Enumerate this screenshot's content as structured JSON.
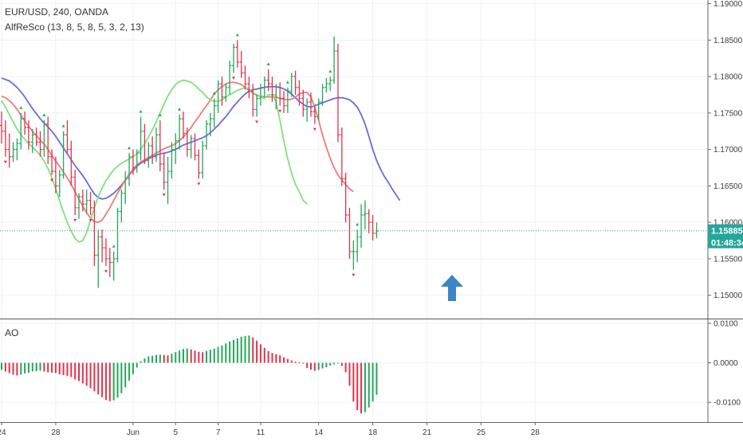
{
  "header": {
    "symbol": "EUR/USD, 240, OANDA",
    "indicator": "AlfReSco (13, 8, 5, 8, 5, 3, 2, 13)",
    "oscillator": "AO"
  },
  "price_tag": {
    "value": "1.15885",
    "countdown": "01:48:34",
    "color": "#26a69a"
  },
  "colors": {
    "up": "#26a65b",
    "down": "#e0344b",
    "jaw": "#6b6be0",
    "teeth": "#ef7a7a",
    "lips": "#7de37d",
    "arrow": "#3d85c6",
    "grid": "#eef1f5",
    "current_line": "#26a69a"
  },
  "arrow_icon": "up-arrow-icon",
  "chart_data": [
    {
      "type": "ohlc",
      "name": "EUR/USD",
      "ylim": [
        1.1468,
        1.1905
      ],
      "y_ticks": [
        "1.19000",
        "1.18500",
        "1.18000",
        "1.17500",
        "1.17000",
        "1.16500",
        "1.16000",
        "1.15500",
        "1.15000"
      ],
      "y_tick_values": [
        1.19,
        1.185,
        1.18,
        1.175,
        1.17,
        1.165,
        1.16,
        1.155,
        1.15
      ],
      "x_tick_labels": [
        "24",
        "28",
        "Jun",
        "5",
        "7",
        "11",
        "14",
        "18",
        "21",
        "25",
        "28"
      ],
      "x_tick_index": [
        0,
        14,
        34,
        45,
        56,
        67,
        82,
        96,
        110,
        124,
        138
      ],
      "current_price": 1.15885,
      "bars": [
        [
          1.1733,
          1.1752,
          1.1708,
          1.1725
        ],
        [
          1.1725,
          1.174,
          1.169,
          1.17
        ],
        [
          1.17,
          1.1722,
          1.1675,
          1.169
        ],
        [
          1.169,
          1.171,
          1.1683,
          1.17
        ],
        [
          1.17,
          1.1715,
          1.1685,
          1.1708
        ],
        [
          1.1708,
          1.175,
          1.17,
          1.1742
        ],
        [
          1.1742,
          1.1752,
          1.172,
          1.173
        ],
        [
          1.173,
          1.174,
          1.17,
          1.171
        ],
        [
          1.171,
          1.1728,
          1.1695,
          1.172
        ],
        [
          1.172,
          1.173,
          1.1705,
          1.171
        ],
        [
          1.171,
          1.1725,
          1.169,
          1.17
        ],
        [
          1.17,
          1.174,
          1.169,
          1.1735
        ],
        [
          1.1735,
          1.1745,
          1.168,
          1.169
        ],
        [
          1.169,
          1.17,
          1.1665,
          1.167
        ],
        [
          1.167,
          1.169,
          1.164,
          1.165
        ],
        [
          1.165,
          1.1672,
          1.1635,
          1.1665
        ],
        [
          1.1665,
          1.1725,
          1.166,
          1.172
        ],
        [
          1.172,
          1.174,
          1.1695,
          1.17
        ],
        [
          1.17,
          1.1712,
          1.165,
          1.1662
        ],
        [
          1.1662,
          1.1672,
          1.161,
          1.162
        ],
        [
          1.162,
          1.164,
          1.1605,
          1.1635
        ],
        [
          1.1635,
          1.1645,
          1.1615,
          1.1625
        ],
        [
          1.1625,
          1.1645,
          1.1612,
          1.163
        ],
        [
          1.163,
          1.1642,
          1.161,
          1.162
        ],
        [
          1.162,
          1.163,
          1.154,
          1.1555
        ],
        [
          1.1555,
          1.159,
          1.151,
          1.158
        ],
        [
          1.158,
          1.159,
          1.1545,
          1.1565
        ],
        [
          1.1565,
          1.1578,
          1.154,
          1.155
        ],
        [
          1.155,
          1.1565,
          1.1525,
          1.1545
        ],
        [
          1.1545,
          1.156,
          1.152,
          1.155
        ],
        [
          1.155,
          1.162,
          1.1545,
          1.1615
        ],
        [
          1.1615,
          1.1645,
          1.16,
          1.164
        ],
        [
          1.164,
          1.167,
          1.1625,
          1.166
        ],
        [
          1.166,
          1.1695,
          1.165,
          1.169
        ],
        [
          1.169,
          1.17,
          1.1665,
          1.1675
        ],
        [
          1.1675,
          1.17,
          1.1668,
          1.1695
        ],
        [
          1.1695,
          1.1745,
          1.1685,
          1.1725
        ],
        [
          1.1725,
          1.1735,
          1.168,
          1.1685
        ],
        [
          1.1685,
          1.171,
          1.1675,
          1.1705
        ],
        [
          1.1705,
          1.1718,
          1.168,
          1.169
        ],
        [
          1.169,
          1.173,
          1.1683,
          1.172
        ],
        [
          1.172,
          1.174,
          1.167,
          1.168
        ],
        [
          1.168,
          1.1695,
          1.1645,
          1.1655
        ],
        [
          1.1655,
          1.169,
          1.1625,
          1.167
        ],
        [
          1.167,
          1.171,
          1.166,
          1.17
        ],
        [
          1.17,
          1.1722,
          1.168,
          1.1712
        ],
        [
          1.1712,
          1.1748,
          1.17,
          1.1742
        ],
        [
          1.1742,
          1.1752,
          1.1715,
          1.1722
        ],
        [
          1.1722,
          1.173,
          1.169,
          1.17
        ],
        [
          1.17,
          1.172,
          1.1688,
          1.1715
        ],
        [
          1.1715,
          1.1722,
          1.1685,
          1.1692
        ],
        [
          1.1692,
          1.17,
          1.166,
          1.1668
        ],
        [
          1.1668,
          1.1712,
          1.166,
          1.1705
        ],
        [
          1.1705,
          1.174,
          1.17,
          1.1735
        ],
        [
          1.1735,
          1.175,
          1.1718,
          1.1742
        ],
        [
          1.1742,
          1.177,
          1.173,
          1.176
        ],
        [
          1.176,
          1.1795,
          1.175,
          1.179
        ],
        [
          1.179,
          1.18,
          1.176,
          1.1772
        ],
        [
          1.1772,
          1.179,
          1.1765,
          1.1785
        ],
        [
          1.1785,
          1.1822,
          1.1775,
          1.1815
        ],
        [
          1.1815,
          1.1845,
          1.1805,
          1.184
        ],
        [
          1.184,
          1.185,
          1.1812,
          1.182
        ],
        [
          1.182,
          1.1835,
          1.1798,
          1.1805
        ],
        [
          1.1805,
          1.1815,
          1.1782,
          1.179
        ],
        [
          1.179,
          1.18,
          1.177,
          1.178
        ],
        [
          1.178,
          1.179,
          1.1745,
          1.1755
        ],
        [
          1.1755,
          1.1775,
          1.1745,
          1.177
        ],
        [
          1.177,
          1.179,
          1.176,
          1.1785
        ],
        [
          1.1785,
          1.18,
          1.1772,
          1.1795
        ],
        [
          1.1795,
          1.181,
          1.178,
          1.179
        ],
        [
          1.179,
          1.18,
          1.1765,
          1.1775
        ],
        [
          1.1775,
          1.179,
          1.1755,
          1.1785
        ],
        [
          1.1785,
          1.1792,
          1.176,
          1.177
        ],
        [
          1.177,
          1.178,
          1.175,
          1.176
        ],
        [
          1.176,
          1.1785,
          1.175,
          1.178
        ],
        [
          1.178,
          1.1805,
          1.1772,
          1.18
        ],
        [
          1.18,
          1.1808,
          1.1775,
          1.1785
        ],
        [
          1.1785,
          1.1795,
          1.176,
          1.177
        ],
        [
          1.177,
          1.1782,
          1.1745,
          1.1755
        ],
        [
          1.1755,
          1.177,
          1.1738,
          1.1765
        ],
        [
          1.1765,
          1.1778,
          1.1745,
          1.1752
        ],
        [
          1.1752,
          1.176,
          1.1735,
          1.1745
        ],
        [
          1.1745,
          1.177,
          1.174,
          1.1765
        ],
        [
          1.1765,
          1.179,
          1.176,
          1.1785
        ],
        [
          1.1785,
          1.1798,
          1.1778,
          1.179
        ],
        [
          1.179,
          1.18,
          1.178,
          1.1795
        ],
        [
          1.1795,
          1.1855,
          1.179,
          1.1835
        ],
        [
          1.1835,
          1.1845,
          1.171,
          1.172
        ],
        [
          1.172,
          1.173,
          1.165,
          1.166
        ],
        [
          1.166,
          1.1668,
          1.16,
          1.161
        ],
        [
          1.161,
          1.162,
          1.155,
          1.156
        ],
        [
          1.156,
          1.1575,
          1.1535,
          1.156
        ],
        [
          1.156,
          1.159,
          1.1545,
          1.158
        ],
        [
          1.158,
          1.1625,
          1.1565,
          1.161
        ],
        [
          1.161,
          1.163,
          1.159,
          1.1612
        ],
        [
          1.1612,
          1.1618,
          1.1585,
          1.16
        ],
        [
          1.16,
          1.161,
          1.1575,
          1.1585
        ],
        [
          1.1585,
          1.16,
          1.1578,
          1.1588
        ]
      ],
      "jaw": [
        1.1798,
        1.1796,
        1.1794,
        1.179,
        1.1785,
        1.1779,
        1.1772,
        1.1764,
        1.1756,
        1.1749,
        1.1742,
        1.1736,
        1.1731,
        1.1725,
        1.1718,
        1.171,
        1.1702,
        1.1694,
        1.1686,
        1.1678,
        1.1671,
        1.1664,
        1.1656,
        1.1647,
        1.1639,
        1.1634,
        1.1632,
        1.1633,
        1.1636,
        1.164,
        1.1645,
        1.1651,
        1.1658,
        1.1665,
        1.1671,
        1.1677,
        1.1681,
        1.1684,
        1.1687,
        1.169,
        1.1692,
        1.1694,
        1.1695,
        1.1696,
        1.1698,
        1.17,
        1.1703,
        1.1706,
        1.1708,
        1.171,
        1.1712,
        1.1714,
        1.1716,
        1.1719,
        1.1723,
        1.1728,
        1.1733,
        1.1739,
        1.1745,
        1.1752,
        1.1759,
        1.1765,
        1.1771,
        1.1776,
        1.178,
        1.1782,
        1.1783,
        1.1784,
        1.1785,
        1.1786,
        1.1786,
        1.1786,
        1.1785,
        1.1783,
        1.178,
        1.1776,
        1.1771,
        1.1766,
        1.1762,
        1.1759,
        1.1758,
        1.176,
        1.1762,
        1.1764,
        1.1766,
        1.1768,
        1.177,
        1.1771,
        1.1771,
        1.177,
        1.1768,
        1.1764,
        1.1758,
        1.1748,
        1.1735,
        1.1718,
        1.17,
        1.1685,
        1.1673,
        1.1663,
        1.1655,
        1.1646,
        1.1638,
        1.163
      ],
      "teeth": [
        1.1773,
        1.1771,
        1.1767,
        1.1762,
        1.1755,
        1.1747,
        1.1739,
        1.1732,
        1.1725,
        1.1719,
        1.1713,
        1.1707,
        1.17,
        1.1692,
        1.1684,
        1.1677,
        1.1669,
        1.1661,
        1.1652,
        1.1642,
        1.1632,
        1.1622,
        1.1613,
        1.1606,
        1.1601,
        1.16,
        1.1603,
        1.1611,
        1.162,
        1.163,
        1.164,
        1.1649,
        1.1658,
        1.1666,
        1.1673,
        1.1679,
        1.1683,
        1.1686,
        1.1689,
        1.1692,
        1.1695,
        1.1698,
        1.1701,
        1.1703,
        1.1705,
        1.1708,
        1.1712,
        1.1717,
        1.1723,
        1.173,
        1.1738,
        1.1745,
        1.1753,
        1.176,
        1.1768,
        1.1776,
        1.1782,
        1.1786,
        1.179,
        1.1792,
        1.1792,
        1.1791,
        1.1789,
        1.1785,
        1.1781,
        1.1777,
        1.1774,
        1.1773,
        1.1772,
        1.1772,
        1.1772,
        1.1772,
        1.177,
        1.1769,
        1.1768,
        1.1769,
        1.1772,
        1.1776,
        1.1778,
        1.1778,
        1.1772,
        1.1758,
        1.174,
        1.172,
        1.1703,
        1.1688,
        1.1675,
        1.1665,
        1.1658,
        1.1652,
        1.1646,
        1.1642
      ],
      "lips": [
        1.1767,
        1.1758,
        1.1748,
        1.1738,
        1.1728,
        1.172,
        1.1714,
        1.1708,
        1.1703,
        1.1698,
        1.1692,
        1.1684,
        1.1674,
        1.1661,
        1.1646,
        1.163,
        1.1614,
        1.16,
        1.1588,
        1.1578,
        1.1573,
        1.1575,
        1.1586,
        1.1603,
        1.162,
        1.1635,
        1.1647,
        1.1657,
        1.1665,
        1.1672,
        1.1677,
        1.1681,
        1.1684,
        1.1687,
        1.169,
        1.1694,
        1.17,
        1.1708,
        1.1717,
        1.1727,
        1.1738,
        1.175,
        1.1762,
        1.1773,
        1.1782,
        1.1789,
        1.1793,
        1.1795,
        1.1794,
        1.1792,
        1.1788,
        1.1783,
        1.1778,
        1.1772,
        1.1768,
        1.1766,
        1.1766,
        1.1768,
        1.1772,
        1.1775,
        1.1778,
        1.1781,
        1.1783,
        1.1785,
        1.1783,
        1.1778,
        1.1775,
        1.1772,
        1.177,
        1.1775,
        1.1775,
        1.1765,
        1.174,
        1.1712,
        1.1687,
        1.1667,
        1.1652,
        1.1642,
        1.163,
        1.1625
      ],
      "jaw_start": 0,
      "teeth_start": 0,
      "lips_start": 0,
      "fractals_up": [
        5,
        11,
        16,
        29,
        33,
        36,
        41,
        46,
        55,
        61,
        69,
        74,
        85,
        92
      ],
      "fractals_down": [
        1,
        13,
        19,
        23,
        27,
        42,
        51,
        60,
        66,
        72,
        81,
        91
      ],
      "annotation": "up-arrow"
    },
    {
      "type": "bar",
      "name": "AO",
      "ylim": [
        -0.015,
        0.011
      ],
      "y_ticks": [
        "0.0100",
        "0.0000",
        "-0.0100"
      ],
      "y_tick_values": [
        0.01,
        0.0,
        -0.01
      ],
      "values": [
        -0.0018,
        -0.0022,
        -0.0026,
        -0.003,
        -0.0032,
        -0.003,
        -0.0027,
        -0.0025,
        -0.0022,
        -0.0021,
        -0.002,
        -0.0022,
        -0.0024,
        -0.0025,
        -0.0026,
        -0.0029,
        -0.0031,
        -0.0033,
        -0.0036,
        -0.0042,
        -0.0046,
        -0.0052,
        -0.0058,
        -0.0064,
        -0.0072,
        -0.008,
        -0.0087,
        -0.0094,
        -0.0097,
        -0.0095,
        -0.0088,
        -0.0077,
        -0.0062,
        -0.0045,
        -0.0029,
        -0.0012,
        0.0004,
        0.0011,
        0.0016,
        0.0018,
        0.002,
        0.0021,
        0.002,
        0.0019,
        0.0023,
        0.0027,
        0.0031,
        0.0035,
        0.0036,
        0.0034,
        0.0031,
        0.0028,
        0.0027,
        0.003,
        0.0033,
        0.0036,
        0.004,
        0.0044,
        0.0049,
        0.0054,
        0.0058,
        0.0062,
        0.0066,
        0.0068,
        0.0069,
        0.0064,
        0.0056,
        0.0047,
        0.0038,
        0.003,
        0.0025,
        0.0022,
        0.0019,
        0.0014,
        0.001,
        0.0006,
        0.0003,
        0.0001,
        -0.0002,
        -0.0013,
        -0.0017,
        -0.002,
        -0.0018,
        -0.0014,
        -0.0011,
        -0.0007,
        -0.0004,
        -0.0001,
        -0.0008,
        -0.0024,
        -0.0058,
        -0.0098,
        -0.012,
        -0.0128,
        -0.0125,
        -0.0113,
        -0.0098,
        -0.0081
      ]
    }
  ]
}
